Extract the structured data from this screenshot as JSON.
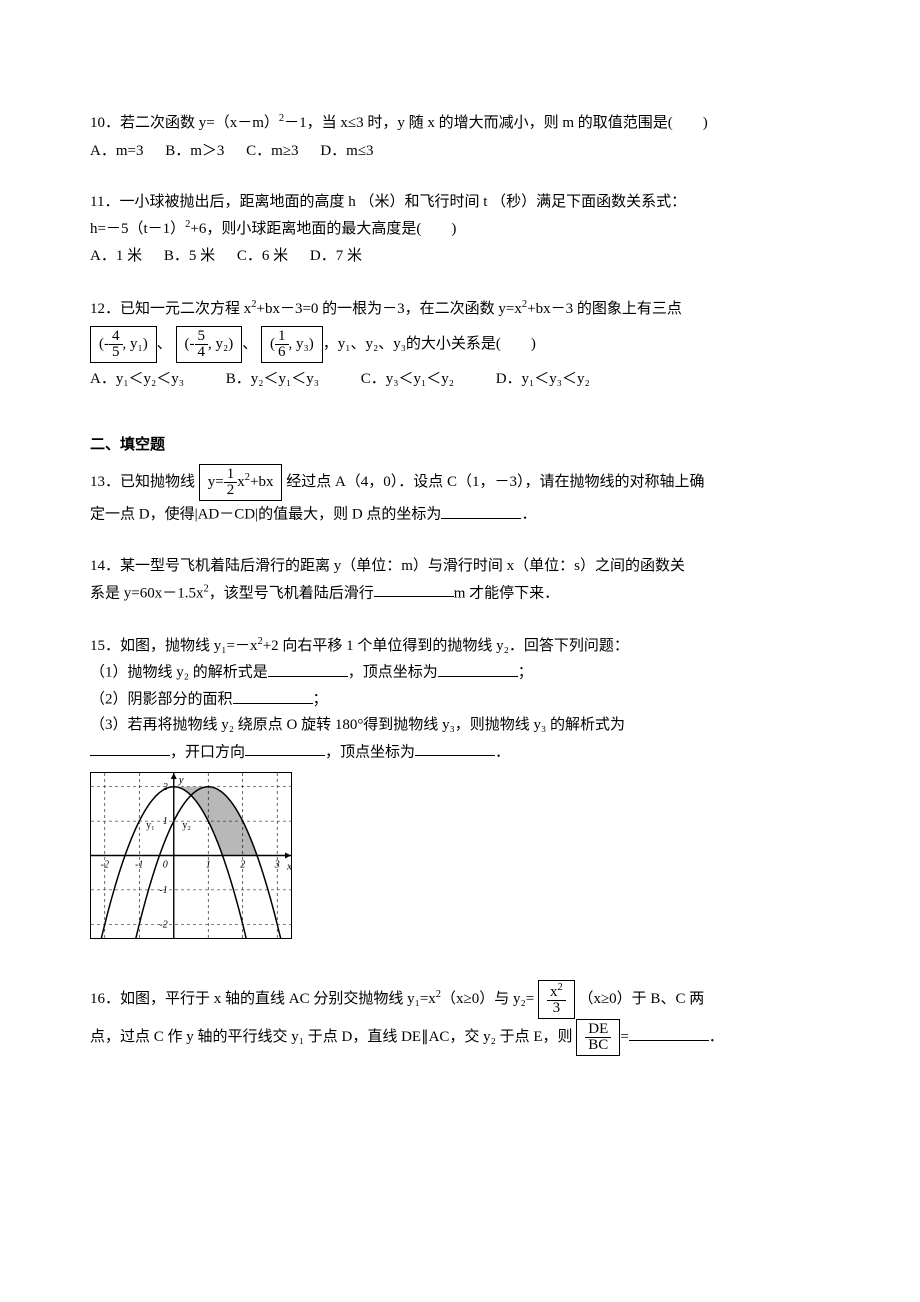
{
  "q10": {
    "stem_pre": "10．若二次函数 y=（x－m）",
    "exp": "2",
    "stem_post": "－1，当 x≤3 时，y 随 x 的增大而减小，则 m 的取值范围是(　　)",
    "choices": {
      "A": "A．m=3",
      "B": "B．m＞3",
      "C": "C．m≥3",
      "D": "D．m≤3"
    }
  },
  "q11": {
    "line1": "11．一小球被抛出后，距离地面的高度 h （米）和飞行时间 t （秒）满足下面函数关系式：",
    "line2_pre": "h=－5（t－1）",
    "exp": "2",
    "line2_post": "+6，则小球距离地面的最大高度是(　　)",
    "choices": {
      "A": "A．1 米",
      "B": "B．5 米",
      "C": "C．6 米",
      "D": "D．7 米"
    }
  },
  "q12": {
    "line1_pre": "12．已知一元二次方程 x",
    "exp": "2",
    "line1_mid": "+bx－3=0 的一根为－3，在二次函数 y=x",
    "line1_post": "+bx－3 的图象上有三点",
    "p1_num": "4",
    "p1_den": "5",
    "p1_y": "y₁",
    "p2_num": "5",
    "p2_den": "4",
    "p2_y": "y₂",
    "p3_num": "1",
    "p3_den": "6",
    "p3_y": "y₃",
    "after_boxes": "、",
    "after_all": "，y₁、y₂、y₃的大小关系是(　　)",
    "choices": {
      "A": "A．y₁＜y₂＜y₃",
      "B": "B．y₂＜y₁＜y₃",
      "C": "C．y₃＜y₁＜y₂",
      "D": "D．y₁＜y₃＜y₂"
    }
  },
  "section2": "二、填空题",
  "q13": {
    "pre": "13．已知抛物线",
    "box": {
      "y_eq": "y=",
      "num": "1",
      "den": "2",
      "x2": "x",
      "exp": "2",
      "tail": "+bx"
    },
    "mid1": "经过点 A（4，0）．设点 C（1，－3），请在抛物线的对称轴上确",
    "mid2": "定一点 D，使得|AD－CD|的值最大，则 D 点的坐标为",
    "end": "．"
  },
  "q14": {
    "line1": "14．某一型号飞机着陆后滑行的距离 y（单位：m）与滑行时间 x（单位：s）之间的函数关",
    "line2_pre": "系是 y=60x－1.5x",
    "exp": "2",
    "line2_mid": "，该型号飞机着陆后滑行",
    "line2_post": "m 才能停下来．"
  },
  "q15": {
    "line1_pre": "15．如图，抛物线 y₁=－x",
    "exp": "2",
    "line1_post": "+2 向右平移 1 个单位得到的抛物线 y₂．回答下列问题：",
    "sub1_pre": "（1）抛物线 y₂ 的解析式是",
    "sub1_mid": "，顶点坐标为",
    "sub1_end": "；",
    "sub2_pre": "（2）阴影部分的面积",
    "sub2_end": "；",
    "sub3_pre": "（3）若再将抛物线 y₂ 绕原点 O 旋转 180°得到抛物线 y₃，则抛物线 y₃ 的解析式为",
    "sub3_line2_a": "，开口方向",
    "sub3_line2_b": "，顶点坐标为",
    "sub3_end": "．",
    "graph": {
      "xlim": [
        -2.4,
        3.4
      ],
      "ylim": [
        -2.4,
        2.4
      ],
      "x_ticks": [
        -2,
        -1,
        0,
        1,
        2,
        3
      ],
      "y_ticks": [
        -2,
        -1,
        1,
        2
      ],
      "y1_label": "y₁",
      "y2_label": "y₂",
      "curve1_vertex": [
        0,
        2
      ],
      "curve2_vertex": [
        1,
        2
      ],
      "axis_color": "#000",
      "dash_color": "#000",
      "shade_color": "#888888",
      "frame_color": "#000"
    }
  },
  "q16": {
    "line1_pre": "16．如图，平行于 x 轴的直线 AC 分别交抛物线 y₁=x",
    "exp": "2",
    "line1_mid": "（x≥0）与 y₂=",
    "box": {
      "num_pre": "x",
      "num_exp": "2",
      "den": "3"
    },
    "line1_post": "（x≥0）于 B、C 两",
    "line2_pre": "点，过点 C 作 y 轴的平行线交 y₁ 于点 D，直线 DE∥AC，交 y₂ 于点 E，则",
    "ratio": {
      "num": "DE",
      "den": "BC"
    },
    "line2_mid": "=",
    "line2_end": "．"
  }
}
